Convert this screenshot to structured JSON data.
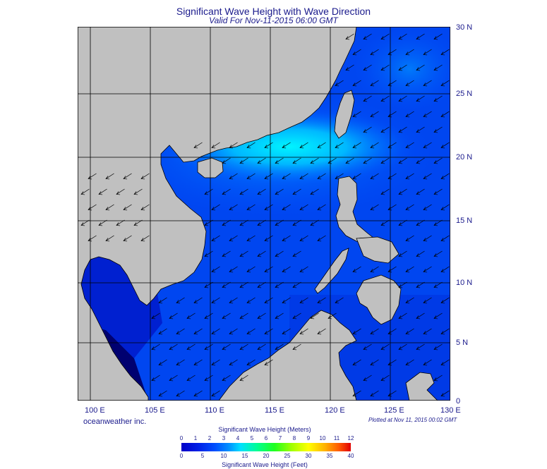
{
  "title": "Significant Wave Height with Wave Direction",
  "subtitle": "Valid For Nov-11-2015 06:00 GMT",
  "lat_labels": [
    "30 N",
    "25 N",
    "20 N",
    "15 N",
    "10 N",
    "5 N",
    "0"
  ],
  "lon_labels": [
    "100 E",
    "105 E",
    "110 E",
    "115 E",
    "120 E",
    "125 E",
    "130 E"
  ],
  "credit": "oceanweather inc.",
  "plotted": "Plotted at Nov 11, 2015 00:02 GMT",
  "colorbar": {
    "title_meters": "Significant Wave Height (Meters)",
    "title_feet": "Significant Wave Height (Feet)",
    "meters_ticks": [
      "0",
      "1",
      "2",
      "3",
      "4",
      "5",
      "6",
      "7",
      "8",
      "9",
      "10",
      "11",
      "12"
    ],
    "feet_ticks": [
      "0",
      "5",
      "10",
      "15",
      "20",
      "25",
      "30",
      "35",
      "40"
    ]
  },
  "colors": {
    "land": "#c0c0c0",
    "sea_low": "#0000c8",
    "sea_mid": "#0050ff",
    "sea_high": "#00e8ff",
    "grid": "#000000",
    "text": "#1a1a8c"
  },
  "map": {
    "lon_range": [
      99,
      130
    ],
    "lat_range": [
      0,
      30
    ],
    "wave_direction": "from northeast"
  }
}
